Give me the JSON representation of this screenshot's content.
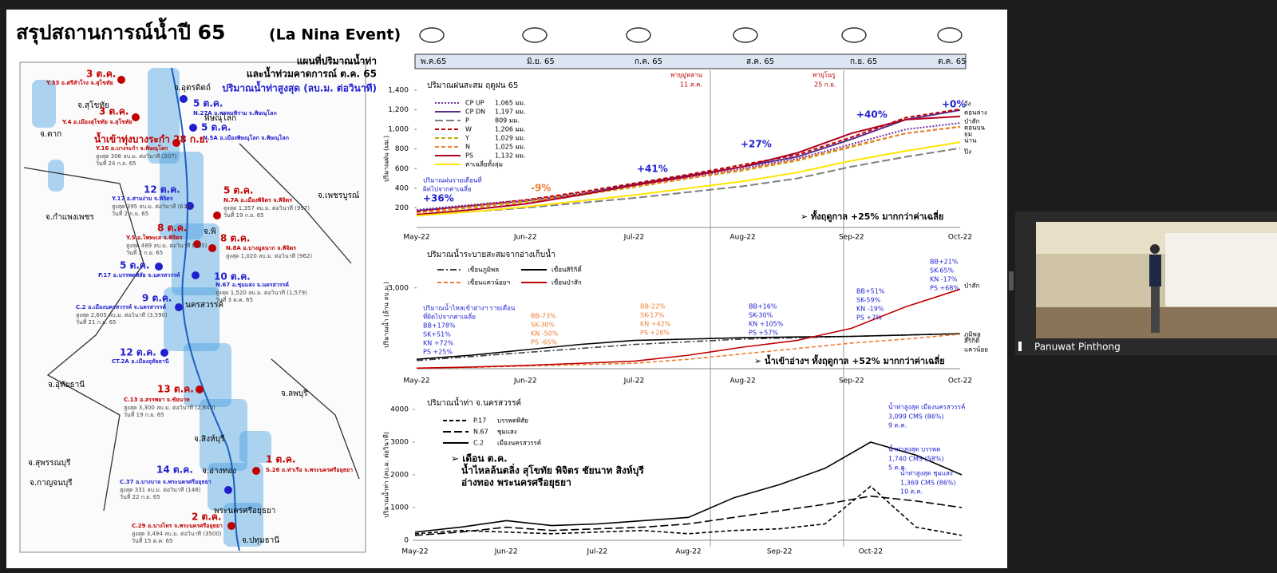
{
  "window": {
    "participant": "Panuwat Pinthong"
  },
  "slide": {
    "title": "สรุปสถานการณ์น้ำปี 65",
    "title_en": "(La Nina Event)",
    "timeline": [
      "พ.ค.65",
      "มิ.ย. 65",
      "ก.ค. 65",
      "ส.ค. 65",
      "ก.ย. 65",
      "ต.ค. 65"
    ],
    "map": {
      "heading": [
        "แผนที่ปริมาณน้ำท่า",
        "และน้ำท่วมคาดการณ์ ต.ค. 65",
        "ปริมาณน้ำท่าสูงสุด (ลบ.ม. ต่อวินาที)"
      ],
      "provinces": [
        "จ.อุตรดิตถ์",
        "จ.สุโขทัย",
        "จ.ตาก",
        "พิษณุโลก",
        "จ.เพชรบูรณ์",
        "จ.กำแพงเพชร",
        "จ.พิ",
        "นครสวรรค์",
        "จ.อุทัยธานี",
        "จ.ลพบุรี",
        "จ.สิงห์บุรี",
        "จ.อ่างทอง",
        "จ.สุพรรณบุรี",
        "จ.กาญจนบุรี",
        "พระนครศรีอยุธยา",
        "จ.ปทุมธานี"
      ],
      "stations": [
        {
          "date": "3 ต.ค.",
          "code": "Y.33 อ.ศรีสำโรง จ.สุโขทัย",
          "color": "#c00000",
          "lines": []
        },
        {
          "date": "3 ต.ค.",
          "code": "Y.4 อ.เมืองสุโขทัย จ.สุโขทัย",
          "color": "#c00000",
          "lines": []
        },
        {
          "date": "5 ต.ค.",
          "code": "N.27A อ.พรหมพิราม จ.พิษณุโลก",
          "color": "#1f1fd0",
          "lines": []
        },
        {
          "date": "5 ต.ค.",
          "code": "N.5A อ.เมืองพิษณุโลก จ.พิษณุโลก",
          "color": "#1f1fd0",
          "lines": []
        },
        {
          "date": "น้ำเข้าทุ่งบางระกำ 28 ก.ย.",
          "code": "Y.16 อ.บางระกำ จ.พิษณุโลก",
          "color": "#c00000",
          "lines": [
            "สูงสุด 306 ลบ.ม. ต่อวินาที (207)",
            "วันที่ 24 ก.ย. 65"
          ]
        },
        {
          "date": "12 ต.ค.",
          "code": "Y.17 อ.สามง่าม จ.พิจิตร",
          "color": "#1f1fd0",
          "lines": [
            "สูงสุด 395 ลบ.ม. ต่อวินาที (614)",
            "วันที่ 2 ก.ย. 65"
          ]
        },
        {
          "date": "5 ต.ค.",
          "code": "N.7A อ.เมืองพิจิตร จ.พิจิตร",
          "color": "#c00000",
          "lines": [
            "สูงสุด 1,357 ลบ.ม. ต่อวินาที (997)",
            "วันที่ 19 ก.ย. 65"
          ]
        },
        {
          "date": "8 ต.ค.",
          "code": "Y.5 อ.โพทะเล จ.พิจิตร",
          "color": "#c00000",
          "lines": [
            "สูงสุด 489 ลบ.ม. ต่อวินาที (465)",
            "วันที่ 2 ก.ย. 65"
          ]
        },
        {
          "date": "8 ต.ค.",
          "code": "N.8A อ.บางมูลนาก จ.พิจิตร",
          "color": "#c00000",
          "lines": [
            "สูงสุด 1,020 ลบ.ม. ต่อวินาที (962)"
          ]
        },
        {
          "date": "5 ต.ค.",
          "code": "P.17 อ.บรรพตพิสัย จ.นครสวรรค์",
          "color": "#1f1fd0",
          "lines": []
        },
        {
          "date": "10 ต.ค.",
          "code": "N.67 อ.ชุมแสง จ.นครสวรรค์",
          "color": "#1f1fd0",
          "lines": [
            "สูงสุด 1,520 ลบ.ม. ต่อวินาที (1,579)",
            "วันที่ 3 ต.ค. 65"
          ]
        },
        {
          "date": "9 ต.ค.",
          "code": "C.2 อ.เมืองนครสวรรค์ จ.นครสวรรค์",
          "color": "#1f1fd0",
          "lines": [
            "สูงสุด 2,605 ลบ.ม. ต่อวินาที (3,590)",
            "วันที่ 21 ก.ย. 65"
          ]
        },
        {
          "date": "12 ต.ค.",
          "code": "CT.2A อ.เมืองอุทัยธานี",
          "color": "#1f1fd0",
          "lines": []
        },
        {
          "date": "13 ต.ค.",
          "code": "C.13 อ.สรรพยา จ.ชัยนาท",
          "color": "#c00000",
          "lines": [
            "สูงสุด 3,300 ลบ.ม. ต่อวินาที (2,840)",
            "วันที่ 19 ก.ย. 65"
          ]
        },
        {
          "date": "14 ต.ค.",
          "code": "C.37 อ.บางบาล จ.พระนครศรีอยุธยา",
          "color": "#1f1fd0",
          "lines": [
            "สูงสุด 331 ลบ.ม. ต่อวินาที (148)",
            "วันที่ 22 ก.ย. 65"
          ]
        },
        {
          "date": "1 ต.ค.",
          "code": "S.26 อ.ท่าเรือ จ.พระนครศรีอยุธยา",
          "color": "#c00000",
          "lines": []
        },
        {
          "date": "2 ต.ค.",
          "code": "C.29 อ.บางไทร จ.พระนครศรีอยุธยา",
          "color": "#c00000",
          "lines": [
            "สูงสุด 3,494 ลบ.ม. ต่อวินาที (3500)",
            "วันที่ 15 ต.ค. 65"
          ]
        }
      ]
    }
  },
  "chart_data": [
    {
      "type": "line",
      "title": "ปริมาณฝนสะสม ฤดูฝน 65",
      "y_label": "ปริมาณฝน (มม.)",
      "categories": [
        "May-22",
        null,
        "Jun-22",
        null,
        "Jul-22",
        null,
        "Aug-22",
        null,
        "Sep-22",
        null,
        "Oct-22"
      ],
      "ylim": [
        0,
        1400
      ],
      "yticks": [
        200,
        400,
        600,
        800,
        {
          "value": 1000,
          "label": "1,000"
        },
        {
          "value": 1200,
          "label": "1,200"
        },
        {
          "value": 1400,
          "label": "1,400"
        }
      ],
      "series": [
        {
          "name": "CP UP",
          "legend_text": "1,065 มม.",
          "color": "#7030a0",
          "style": "dotted",
          "values": [
            180,
            230,
            280,
            350,
            430,
            510,
            600,
            700,
            850,
            1000,
            1065
          ]
        },
        {
          "name": "CP DN",
          "legend_text": "1,197 มม.",
          "color": "#5b2c8a",
          "style": "solid",
          "values": [
            170,
            220,
            270,
            340,
            440,
            530,
            620,
            720,
            900,
            1100,
            1197
          ]
        },
        {
          "name": "P",
          "legend_text": "809 มม.",
          "color": "#7f7f7f",
          "style": "longdash",
          "values": [
            120,
            160,
            200,
            250,
            300,
            360,
            420,
            500,
            620,
            720,
            809
          ]
        },
        {
          "name": "W",
          "legend_text": "1,206 มม.",
          "color": "#c00000",
          "style": "dashed",
          "values": [
            160,
            220,
            280,
            360,
            450,
            540,
            640,
            740,
            920,
            1120,
            1206
          ]
        },
        {
          "name": "Y",
          "legend_text": "1,029 มม.",
          "color": "#c6a700",
          "style": "dashed",
          "values": [
            150,
            200,
            260,
            330,
            410,
            500,
            580,
            680,
            820,
            960,
            1029
          ]
        },
        {
          "name": "N",
          "legend_text": "1,025 มม.",
          "color": "#ed7d31",
          "style": "dashed",
          "values": [
            150,
            210,
            270,
            340,
            420,
            500,
            590,
            690,
            830,
            960,
            1025
          ]
        },
        {
          "name": "PS",
          "legend_text": "1,132 มม.",
          "color": "#b00020",
          "style": "solid",
          "values": [
            130,
            180,
            240,
            330,
            430,
            520,
            620,
            760,
            960,
            1100,
            1132
          ]
        },
        {
          "name": "ค่าเฉลี่ยทั้งลุ่ม",
          "legend_text": "",
          "color": "#ffe600",
          "style": "solid",
          "values": [
            120,
            160,
            210,
            270,
            330,
            400,
            470,
            560,
            680,
            780,
            870
          ]
        }
      ],
      "annotations": [
        {
          "text": "+36%",
          "color": "#1f1fd0"
        },
        {
          "text": "-9%",
          "color": "#ed7d31"
        },
        {
          "text": "+41%",
          "color": "#1f1fd0"
        },
        {
          "text": "+27%",
          "color": "#1f1fd0"
        },
        {
          "text": "+40%",
          "color": "#1f1fd0"
        },
        {
          "text": "+0%",
          "color": "#1f1fd0"
        },
        {
          "text": "พายุมู่หลาน",
          "color": "#c00000"
        },
        {
          "text": "11 ส.ค.",
          "color": "#c00000"
        },
        {
          "text": "พายุโนรู",
          "color": "#c00000"
        },
        {
          "text": "25 ก.ย.",
          "color": "#c00000"
        },
        {
          "text": "ปริมาณฝนรายเดือนที่",
          "color": "#1f1fd0"
        },
        {
          "text": "ผิดไปจากค่าเฉลี่ย",
          "color": "#1f1fd0"
        }
      ],
      "note": "➢  ทั้งฤดูกาล +25% มากกว่าค่าเฉลี่ย",
      "right_labels": [
        "วัง",
        "ตอนล่าง",
        "ป่าสัก",
        "ตอนบน",
        "ยม",
        "น่าน",
        "ปิง"
      ]
    },
    {
      "type": "line",
      "title": "ปริมาณน้ำระบายสะสมจากอ่างเก็บน้ำ",
      "y_label": "ปริมาณน้ำ (ล้าน ลบ.ม.)",
      "categories": [
        "May-22",
        null,
        "Jun-22",
        null,
        "Jul-22",
        null,
        "Aug-22",
        null,
        "Sep-22",
        null,
        "Oct-22"
      ],
      "ylim": [
        0,
        4000
      ],
      "yticks": [
        {
          "value": 3000,
          "label": "3,000"
        }
      ],
      "series": [
        {
          "name": "เขื่อนภูมิพล",
          "color": "#404040",
          "style": "dashdot",
          "values": [
            300,
            450,
            600,
            750,
            900,
            1000,
            1100,
            1150,
            1200,
            1250,
            1300
          ]
        },
        {
          "name": "เขื่อนสิริกิติ์",
          "color": "#000000",
          "style": "solid",
          "values": [
            350,
            500,
            700,
            900,
            1050,
            1100,
            1150,
            1180,
            1200,
            1250,
            1300
          ]
        },
        {
          "name": "เขื่อนแควน้อยฯ",
          "color": "#ed7d31",
          "style": "dashed",
          "values": [
            20,
            50,
            100,
            150,
            200,
            350,
            550,
            750,
            950,
            1100,
            1280
          ]
        },
        {
          "name": "เขื่อนป่าสัก",
          "color": "#c00000",
          "style": "solid",
          "values": [
            20,
            60,
            120,
            200,
            280,
            500,
            800,
            1050,
            1500,
            2300,
            2950
          ]
        }
      ],
      "groups": [
        {
          "color": "#1f1fd0",
          "lines": [
            "ปริมาณน้ำไหลเข้าอ่างฯ รายเดือน",
            "ที่ผิดไปจากค่าเฉลี่ย",
            "BB+178%",
            "SK+51%",
            "KN +72%",
            "PS +25%"
          ]
        },
        {
          "color": "#ed7d31",
          "lines": [
            "BB-73%",
            "SK-30%",
            "KN -50%",
            "PS -65%"
          ]
        },
        {
          "color": "#ed7d31",
          "lines": [
            "BB-22%",
            "SK-17%",
            "KN +42%",
            "PS +28%"
          ]
        },
        {
          "color": "#1f1fd0",
          "lines": [
            "BB+16%",
            "SK-30%",
            "KN +105%",
            "PS +57%"
          ]
        },
        {
          "color": "#1f1fd0",
          "lines": [
            "BB+51%",
            "SK-59%",
            "KN -19%",
            "PS +7%"
          ]
        },
        {
          "color": "#1f1fd0",
          "lines": [
            "BB+21%",
            "SK-65%",
            "KN -17%",
            "PS +68%"
          ]
        }
      ],
      "note": "➢  น้ำเข้าอ่างฯ ทั้งฤดูกาล +52% มากกว่าค่าเฉลี่ย",
      "right_labels": [
        "ป่าสัก",
        "ภูมิพล",
        "สิริกิติ์",
        "แควน้อย"
      ]
    },
    {
      "type": "line",
      "title": "ปริมาณน้ำท่า จ.นครสวรรค์",
      "y_label": "ปริมาณน้ำท่า (ลบ.ม. ต่อวินาที)",
      "categories": [
        "May-22",
        null,
        "Jun-22",
        null,
        "Jul-22",
        null,
        "Aug-22",
        null,
        "Sep-22",
        null,
        "Oct-22",
        null,
        null
      ],
      "ylim": [
        0,
        4000
      ],
      "yticks": [
        0,
        1000,
        2000,
        3000,
        4000
      ],
      "series": [
        {
          "name": "P.17",
          "label2": "บรรพตพิสัย",
          "color": "#000000",
          "style": "dashed",
          "values": [
            200,
            300,
            250,
            200,
            250,
            300,
            200,
            300,
            350,
            500,
            1650,
            400,
            150
          ]
        },
        {
          "name": "N.67",
          "label2": "ชุมแสง",
          "color": "#000000",
          "style": "longdash",
          "values": [
            150,
            250,
            400,
            300,
            350,
            400,
            500,
            700,
            900,
            1100,
            1350,
            1200,
            1000
          ]
        },
        {
          "name": "C.2",
          "label2": "เมืองนครสวรรค์",
          "color": "#000000",
          "style": "solid",
          "values": [
            250,
            400,
            600,
            450,
            500,
            600,
            700,
            1300,
            1700,
            2200,
            3000,
            2600,
            2000
          ]
        }
      ],
      "annotations": [
        {
          "text": "น้ำท่าสูงสุด เมืองนครสวรรค์",
          "color": "#1f1fd0"
        },
        {
          "text": "3,099 CMS (86%)",
          "color": "#1f1fd0"
        },
        {
          "text": "9 ต.ค.",
          "color": "#1f1fd0"
        },
        {
          "text": "น้ำท่าสูงสุด บรรพต",
          "color": "#1f1fd0"
        },
        {
          "text": "1,740 CMS (58%)",
          "color": "#1f1fd0"
        },
        {
          "text": "5 ต.ค.",
          "color": "#1f1fd0"
        },
        {
          "text": "น้ำท่าสูงสุด ชุมแสง",
          "color": "#1f1fd0"
        },
        {
          "text": "1,369 CMS (86%)",
          "color": "#1f1fd0"
        },
        {
          "text": "10 ต.ค.",
          "color": "#1f1fd0"
        }
      ],
      "note_lines": [
        "➢  เดือน ต.ค.",
        "น้ำไหลล้นตลิ่ง สุโขทัย พิจิตร ชัยนาท สิงห์บุรี",
        "อ่างทอง พระนครศรีอยุธยา"
      ]
    }
  ]
}
